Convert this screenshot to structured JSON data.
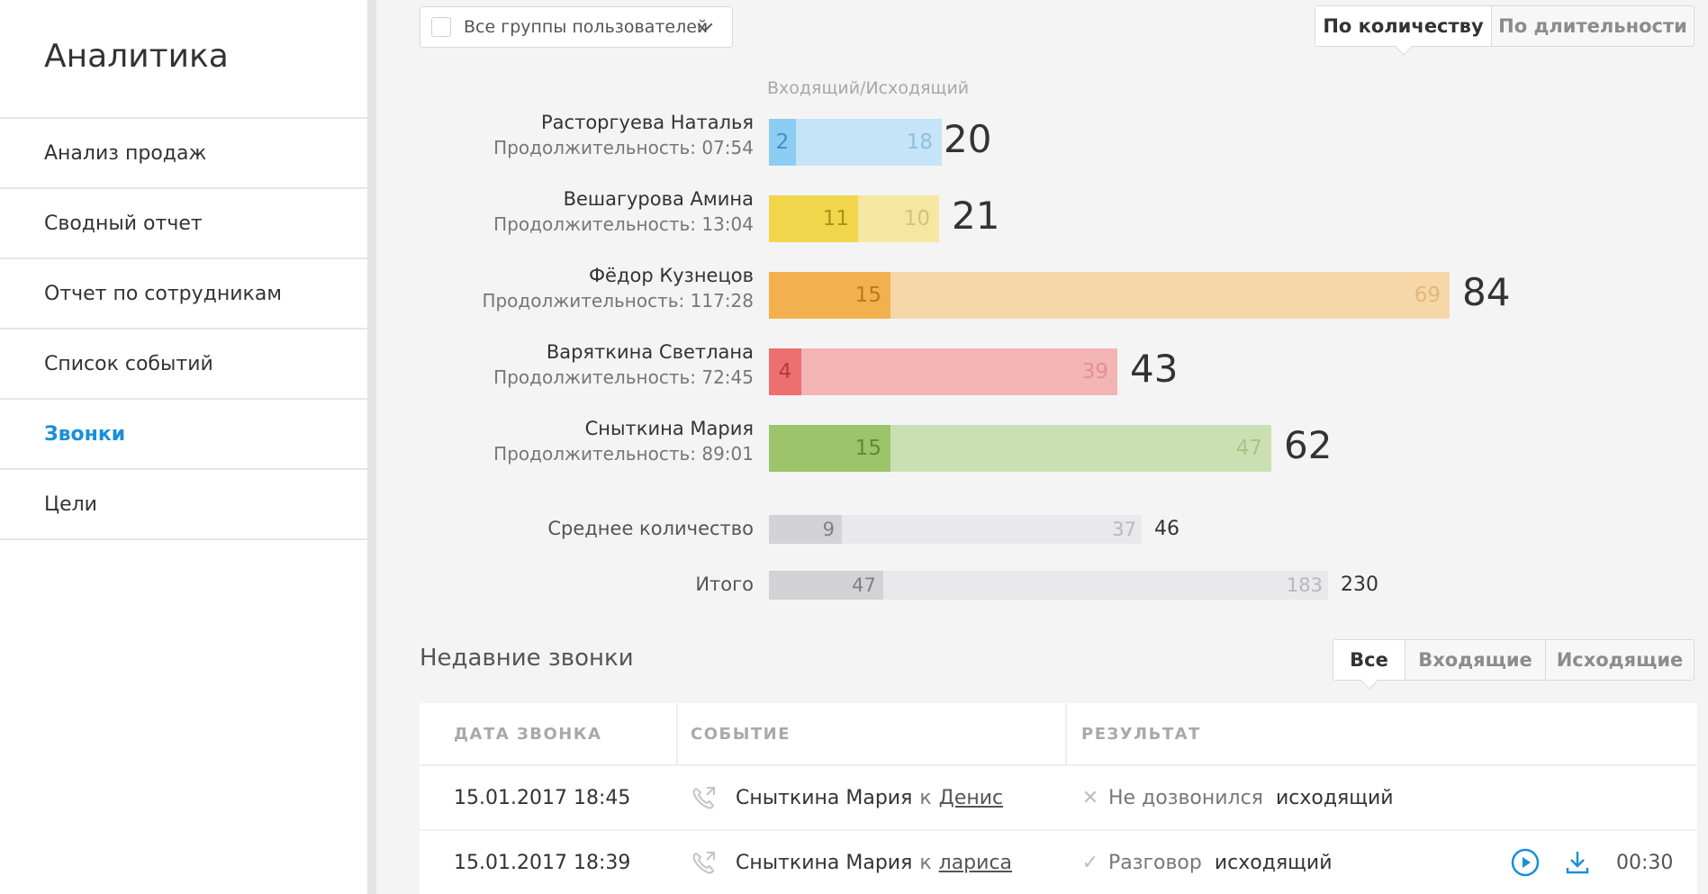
{
  "sidebar": {
    "title": "Аналитика",
    "items": [
      {
        "label": "Анализ продаж",
        "active": false
      },
      {
        "label": "Сводный отчет",
        "active": false
      },
      {
        "label": "Отчет по сотрудникам",
        "active": false
      },
      {
        "label": "Список событий",
        "active": false
      },
      {
        "label": "Звонки",
        "active": true
      },
      {
        "label": "Цели",
        "active": false
      }
    ]
  },
  "filters": {
    "group_select_label": "Все группы пользователей",
    "sort_options": [
      "По количеству",
      "По длительности"
    ],
    "sort_active": 0
  },
  "chart": {
    "legend": "Входящий/Исходящий",
    "rows": [
      {
        "name": "Расторгуева Наталья",
        "duration": "Продолжительность: 07:54",
        "incoming": "2",
        "outgoing": "18",
        "total": "20",
        "color_in": "#8dcdf4",
        "color_out": "#c6e4f7",
        "text_in": "#3f8fc4",
        "text_out": "#8fbfde"
      },
      {
        "name": "Вешагурова Амина",
        "duration": "Продолжительность: 13:04",
        "incoming": "11",
        "outgoing": "10",
        "total": "21",
        "color_in": "#f1d54a",
        "color_out": "#f5e6a1",
        "text_in": "#a79219",
        "text_out": "#d4c37a"
      },
      {
        "name": "Фёдор Кузнецов",
        "duration": "Продолжительность: 117:28",
        "incoming": "15",
        "outgoing": "69",
        "total": "84",
        "color_in": "#f2b14e",
        "color_out": "#f6d7a8",
        "text_in": "#b87a20",
        "text_out": "#e3b77c"
      },
      {
        "name": "Варяткина Светлана",
        "duration": "Продолжительность: 72:45",
        "incoming": "4",
        "outgoing": "39",
        "total": "43",
        "color_in": "#ee6f6f",
        "color_out": "#f3b4b4",
        "text_in": "#b33b3b",
        "text_out": "#e58f8f"
      },
      {
        "name": "Сныткина Мария",
        "duration": "Продолжительность: 89:01",
        "incoming": "15",
        "outgoing": "47",
        "total": "62",
        "color_in": "#9cc46a",
        "color_out": "#cbe0b2",
        "text_in": "#5e8a2e",
        "text_out": "#a6c488"
      }
    ],
    "average": {
      "label": "Среднее количество",
      "incoming": "9",
      "outgoing": "37",
      "total": "46"
    },
    "sum": {
      "label": "Итого",
      "incoming": "47",
      "outgoing": "183",
      "total": "230"
    }
  },
  "recent": {
    "title": "Недавние звонки",
    "filter_options": [
      "Все",
      "Входящие",
      "Исходящие"
    ],
    "filter_active": 0,
    "columns": [
      "ДАТА ЗВОНКА",
      "СОБЫТИЕ",
      "РЕЗУЛЬТАТ"
    ],
    "rows": [
      {
        "date": "15.01.2017 18:45",
        "caller": "Сныткина Мария",
        "to_word": "к",
        "callee": "Денис",
        "result_icon": "cross-icon",
        "result": "Не дозвонился",
        "direction": "исходящий",
        "has_record": false,
        "duration": ""
      },
      {
        "date": "15.01.2017 18:39",
        "caller": "Сныткина Мария",
        "to_word": "к",
        "callee": "лариса",
        "result_icon": "check-icon",
        "result": "Разговор",
        "direction": "исходящий",
        "has_record": true,
        "duration": "00:30"
      }
    ]
  }
}
